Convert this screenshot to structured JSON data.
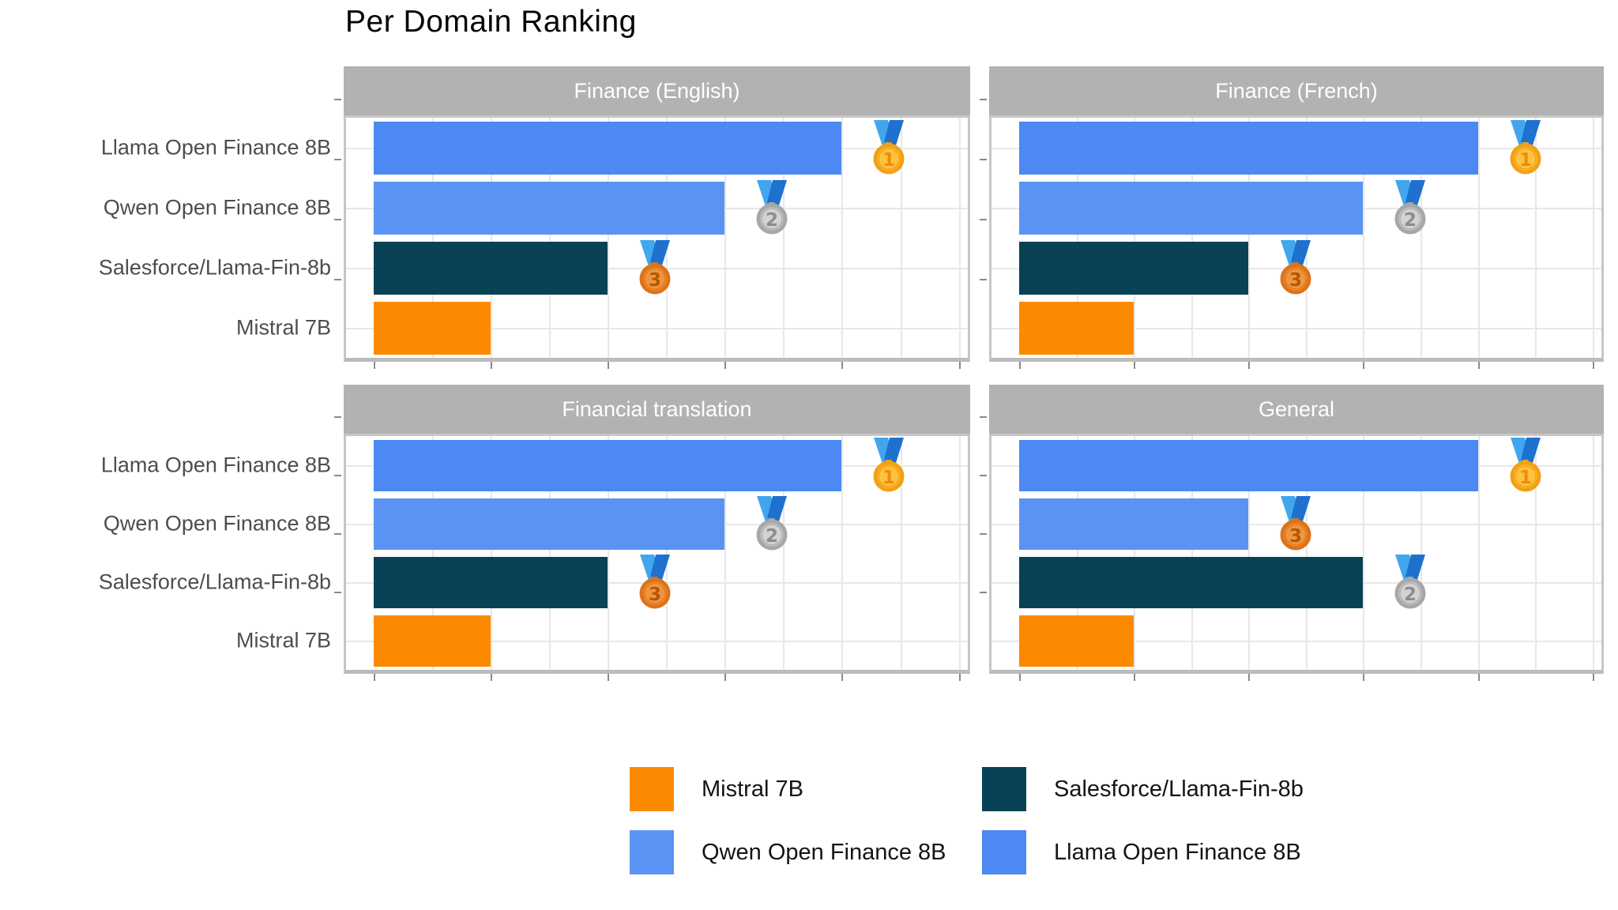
{
  "title": "Per Domain Ranking",
  "models": [
    "Llama Open Finance 8B",
    "Qwen Open Finance 8B",
    "Salesforce/Llama-Fin-8b",
    "Mistral 7B"
  ],
  "colors": {
    "llama": "#4d89f2",
    "qwen": "#5b93f4",
    "salesforce": "#0a4255",
    "mistral": "#fc8a00",
    "strip_bg": "#b2b2b2",
    "strip_text": "#ffffff",
    "grid": "#e7e7e7",
    "panel_border": "#c6c6c6",
    "tick": "#8a8a8a",
    "axis_label": "#4d4d4d",
    "medal_ribbon_light": "#41a6ee",
    "medal_ribbon_dark": "#1e71ce",
    "medal_gold": "#ffc23e",
    "medal_silver": "#d2d2d2",
    "medal_bronze": "#ef9440"
  },
  "facets": [
    {
      "label": "Finance (English)",
      "bars": [
        {
          "model": "Llama Open Finance 8B",
          "color_key": "llama",
          "score": 4,
          "medal": "gold",
          "medal_number": "1"
        },
        {
          "model": "Qwen Open Finance 8B",
          "color_key": "qwen",
          "score": 3,
          "medal": "silver",
          "medal_number": "2"
        },
        {
          "model": "Salesforce/Llama-Fin-8b",
          "color_key": "salesforce",
          "score": 2,
          "medal": "bronze",
          "medal_number": "3"
        },
        {
          "model": "Mistral 7B",
          "color_key": "mistral",
          "score": 1,
          "medal": null,
          "medal_number": null
        }
      ]
    },
    {
      "label": "Finance (French)",
      "bars": [
        {
          "model": "Llama Open Finance 8B",
          "color_key": "llama",
          "score": 4,
          "medal": "gold",
          "medal_number": "1"
        },
        {
          "model": "Qwen Open Finance 8B",
          "color_key": "qwen",
          "score": 3,
          "medal": "silver",
          "medal_number": "2"
        },
        {
          "model": "Salesforce/Llama-Fin-8b",
          "color_key": "salesforce",
          "score": 2,
          "medal": "bronze",
          "medal_number": "3"
        },
        {
          "model": "Mistral 7B",
          "color_key": "mistral",
          "score": 1,
          "medal": null,
          "medal_number": null
        }
      ]
    },
    {
      "label": "Financial translation",
      "bars": [
        {
          "model": "Llama Open Finance 8B",
          "color_key": "llama",
          "score": 4,
          "medal": "gold",
          "medal_number": "1"
        },
        {
          "model": "Qwen Open Finance 8B",
          "color_key": "qwen",
          "score": 3,
          "medal": "silver",
          "medal_number": "2"
        },
        {
          "model": "Salesforce/Llama-Fin-8b",
          "color_key": "salesforce",
          "score": 2,
          "medal": "bronze",
          "medal_number": "3"
        },
        {
          "model": "Mistral 7B",
          "color_key": "mistral",
          "score": 1,
          "medal": null,
          "medal_number": null
        }
      ]
    },
    {
      "label": "General",
      "bars": [
        {
          "model": "Llama Open Finance 8B",
          "color_key": "llama",
          "score": 4,
          "medal": "gold",
          "medal_number": "1"
        },
        {
          "model": "Qwen Open Finance 8B",
          "color_key": "qwen",
          "score": 2,
          "medal": "bronze",
          "medal_number": "3"
        },
        {
          "model": "Salesforce/Llama-Fin-8b",
          "color_key": "salesforce",
          "score": 3,
          "medal": "silver",
          "medal_number": "2"
        },
        {
          "model": "Mistral 7B",
          "color_key": "mistral",
          "score": 1,
          "medal": null,
          "medal_number": null
        }
      ]
    }
  ],
  "legend": {
    "items": [
      {
        "label": "Mistral 7B",
        "color_key": "mistral"
      },
      {
        "label": "Salesforce/Llama-Fin-8b",
        "color_key": "salesforce"
      },
      {
        "label": "Qwen Open Finance 8B",
        "color_key": "qwen"
      },
      {
        "label": "Llama Open Finance 8B",
        "color_key": "llama"
      }
    ]
  },
  "chart_data": {
    "type": "bar",
    "orientation": "horizontal",
    "title": "Per Domain Ranking",
    "categories": [
      "Llama Open Finance 8B",
      "Qwen Open Finance 8B",
      "Salesforce/Llama-Fin-8b",
      "Mistral 7B"
    ],
    "facets": [
      {
        "name": "Finance (English)",
        "values": [
          4,
          3,
          2,
          1
        ],
        "ranks": [
          1,
          2,
          3,
          4
        ],
        "medals": [
          "gold",
          "silver",
          "bronze",
          null
        ]
      },
      {
        "name": "Finance (French)",
        "values": [
          4,
          3,
          2,
          1
        ],
        "ranks": [
          1,
          2,
          3,
          4
        ],
        "medals": [
          "gold",
          "silver",
          "bronze",
          null
        ]
      },
      {
        "name": "Financial translation",
        "values": [
          4,
          3,
          2,
          1
        ],
        "ranks": [
          1,
          2,
          3,
          4
        ],
        "medals": [
          "gold",
          "silver",
          "bronze",
          null
        ]
      },
      {
        "name": "General",
        "values": [
          4,
          2,
          3,
          1
        ],
        "ranks": [
          1,
          3,
          2,
          4
        ],
        "medals": [
          "gold",
          "bronze",
          "silver",
          null
        ]
      }
    ],
    "value_encoding": "bar length = 5 - rank; medals mark ranks 1-3; no numeric x tick labels shown",
    "xlim": [
      0,
      5.05
    ],
    "x_gridline_step": 0.5,
    "grid": "on",
    "legend_position": "bottom"
  }
}
